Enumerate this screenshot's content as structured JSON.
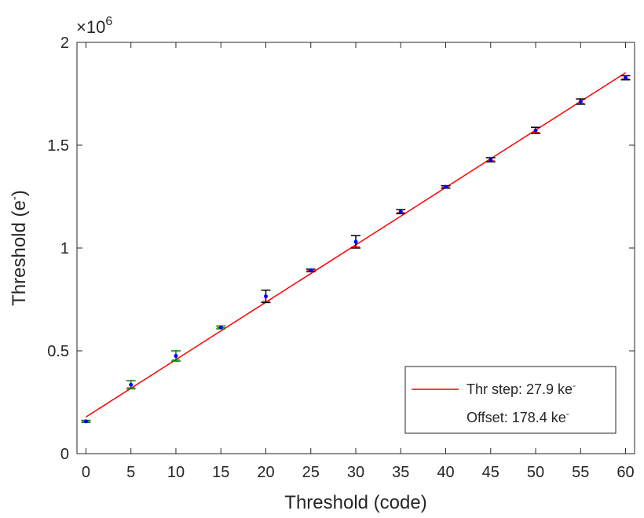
{
  "chart_data": {
    "type": "scatter",
    "title": "",
    "xlabel": "Threshold (code)",
    "ylabel": "Threshold (e",
    "ylabel_superscript": "-",
    "ylabel_suffix": ")",
    "y_exponent_prefix": "×10",
    "y_exponent_power": "6",
    "xlim": [
      -1,
      61
    ],
    "ylim": [
      0,
      2000000
    ],
    "x_ticks": [
      0,
      5,
      10,
      15,
      20,
      25,
      30,
      35,
      40,
      45,
      50,
      55,
      60
    ],
    "x_tick_labels": [
      "0",
      "5",
      "10",
      "15",
      "20",
      "25",
      "30",
      "35",
      "40",
      "45",
      "50",
      "55",
      "60"
    ],
    "y_ticks": [
      0,
      500000,
      1000000,
      1500000,
      2000000
    ],
    "y_tick_labels": [
      "0",
      "0.5",
      "1",
      "1.5",
      "2"
    ],
    "grid": false,
    "legend_position": "bottom-right",
    "series": [
      {
        "kind": "points_with_errorbars",
        "color": "#0000ff",
        "x": [
          0,
          5,
          10,
          15,
          20,
          25,
          30,
          35,
          40,
          45,
          50,
          55,
          60
        ],
        "y": [
          157000,
          335000,
          475000,
          614000,
          765000,
          891000,
          1030000,
          1177000,
          1297000,
          1429000,
          1572000,
          1712000,
          1828000
        ],
        "err_low": [
          5000,
          20000,
          25000,
          7000,
          30000,
          6000,
          30000,
          10000,
          6000,
          10000,
          15000,
          13000,
          10000
        ],
        "err_high": [
          5000,
          20000,
          25000,
          7000,
          30000,
          6000,
          30000,
          10000,
          6000,
          10000,
          15000,
          13000,
          10000
        ],
        "err_colors": [
          "#008000",
          "#008000",
          "#008000",
          "#008000",
          "#000000",
          "#000000",
          "#000000",
          "#000000",
          "#000000",
          "#000000",
          "#000000",
          "#000000",
          "#000000"
        ],
        "cap_accent_colors": [
          "#008000",
          "#ff0000",
          "#008000",
          "#ff0000",
          "#ff0000",
          "#ff0000",
          "#ff0000",
          "#ff0000",
          "#ff0000",
          "#ff0000",
          "#ff0000",
          "#ff0000",
          "#ff0000"
        ]
      },
      {
        "kind": "fit_line",
        "color": "#ff0000",
        "x": [
          0,
          60
        ],
        "y": [
          178400,
          1852400
        ]
      }
    ],
    "legend": {
      "line1": "Thr step: 27.9 ke",
      "line1_sup": "-",
      "line2": "Offset: 178.4 ke",
      "line2_sup": "-",
      "line_color": "#ff0000"
    }
  }
}
